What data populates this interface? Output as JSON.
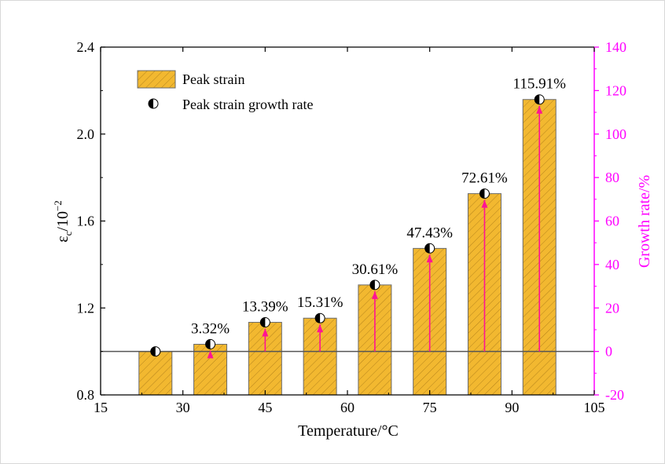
{
  "chart_data": {
    "type": "bar",
    "x_unit_values": [
      25,
      35,
      45,
      55,
      65,
      75,
      85,
      95
    ],
    "series": [
      {
        "name": "Peak strain",
        "axis": "left",
        "values": [
          1.0,
          1.033,
          1.134,
          1.153,
          1.306,
          1.474,
          1.726,
          2.159
        ]
      },
      {
        "name": "Peak strain growth rate",
        "axis": "right",
        "values": [
          0,
          3.32,
          13.39,
          15.31,
          30.61,
          47.43,
          72.61,
          115.91
        ],
        "labels": [
          "",
          "3.32%",
          "13.39%",
          "15.31%",
          "30.61%",
          "47.43%",
          "72.61%",
          "115.91%"
        ]
      }
    ],
    "xlabel": "Temperature/°C",
    "ylabel_left": "εc/10⁻²",
    "ylabel_right": "Growth rate/%",
    "xlim": [
      15,
      105
    ],
    "ylim_left": [
      0.8,
      2.4
    ],
    "ylim_right": [
      -20,
      140
    ],
    "x_ticks": [
      "15",
      "30",
      "45",
      "60",
      "75",
      "90",
      "105"
    ],
    "y_left_ticks": [
      "0.8",
      "1.2",
      "1.6",
      "2.0",
      "2.4"
    ],
    "y_right_ticks": [
      "-20",
      "0",
      "20",
      "40",
      "60",
      "80",
      "100",
      "120",
      "140"
    ],
    "legend": {
      "position": "top-left",
      "items": [
        "Peak strain",
        "Peak strain growth rate"
      ]
    },
    "reference_line_value": 1.0,
    "colors": {
      "bar_fill": "#F2B830",
      "bar_hatch": "#B5841C",
      "bar_edge": "#6b6b6b",
      "right_axis": "#FF00FF",
      "arrow": "#FF1493",
      "marker": "#000000"
    }
  }
}
